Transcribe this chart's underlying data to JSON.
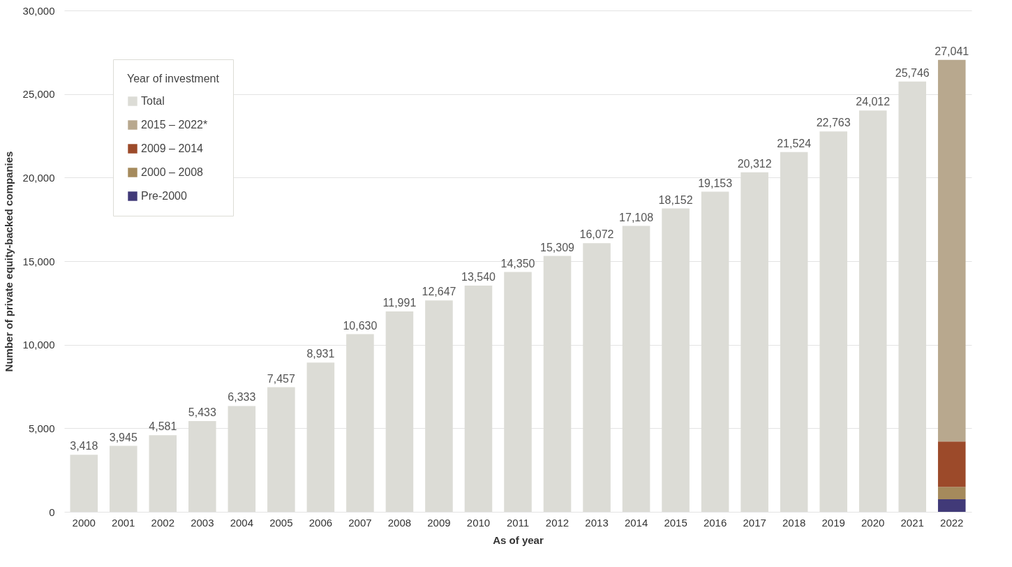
{
  "chart_data": {
    "type": "bar",
    "stacked": true,
    "xlabel": "As of year",
    "ylabel": "Number of private equity-backed companies",
    "legend_title": "Year of investment",
    "legend": "top left",
    "grid": "y",
    "categories": [
      "2000",
      "2001",
      "2002",
      "2003",
      "2004",
      "2005",
      "2006",
      "2007",
      "2008",
      "2009",
      "2010",
      "2011",
      "2012",
      "2013",
      "2014",
      "2015",
      "2016",
      "2017",
      "2018",
      "2019",
      "2020",
      "2021",
      "2022"
    ],
    "series": [
      {
        "name": "Pre-2000",
        "color": "#413a78",
        "values": [
          null,
          null,
          null,
          null,
          null,
          null,
          null,
          null,
          null,
          null,
          null,
          null,
          null,
          null,
          null,
          null,
          null,
          null,
          null,
          null,
          null,
          null,
          750
        ]
      },
      {
        "name": "2000 – 2008",
        "color": "#a58a5c",
        "values": [
          null,
          null,
          null,
          null,
          null,
          null,
          null,
          null,
          null,
          null,
          null,
          null,
          null,
          null,
          null,
          null,
          null,
          null,
          null,
          null,
          null,
          null,
          740
        ]
      },
      {
        "name": "2009 – 2014",
        "color": "#9c4a2a",
        "values": [
          null,
          null,
          null,
          null,
          null,
          null,
          null,
          null,
          null,
          null,
          null,
          null,
          null,
          null,
          null,
          null,
          null,
          null,
          null,
          null,
          null,
          null,
          2720
        ]
      },
      {
        "name": "2015 – 2022*",
        "color": "#b8a88e",
        "values": [
          null,
          null,
          null,
          null,
          null,
          null,
          null,
          null,
          null,
          null,
          null,
          null,
          null,
          null,
          null,
          null,
          null,
          null,
          null,
          null,
          null,
          null,
          22831
        ]
      },
      {
        "name": "Total",
        "color": "#dcdcd6",
        "values": [
          3418,
          3945,
          4581,
          5433,
          6333,
          7457,
          8931,
          10630,
          11991,
          12647,
          13540,
          14350,
          15309,
          16072,
          17108,
          18152,
          19153,
          20312,
          21524,
          22763,
          24012,
          25746,
          null
        ]
      }
    ],
    "totals": [
      "3,418",
      "3,945",
      "4,581",
      "5,433",
      "6,333",
      "7,457",
      "8,931",
      "10,630",
      "11,991",
      "12,647",
      "13,540",
      "14,350",
      "15,309",
      "16,072",
      "17,108",
      "18,152",
      "19,153",
      "20,312",
      "21,524",
      "22,763",
      "24,012",
      "25,746",
      "27,041"
    ],
    "ylim": [
      0,
      30000
    ],
    "yticks": [
      0,
      {
        "value": 5000,
        "label": "5,000"
      },
      {
        "value": 10000,
        "label": "10,000"
      },
      {
        "value": 15000,
        "label": "15,000"
      },
      {
        "value": 20000,
        "label": "20,000"
      },
      {
        "value": 25000,
        "label": "25,000"
      },
      {
        "value": 30000,
        "label": "30,000"
      }
    ]
  }
}
